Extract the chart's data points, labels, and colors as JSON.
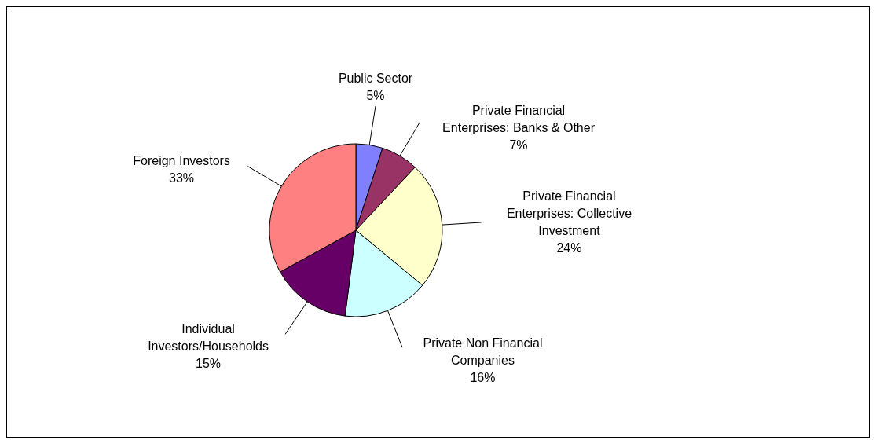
{
  "chart_data": {
    "type": "pie",
    "categories": [
      "Public Sector",
      "Private Financial Enterprises: Banks & Other",
      "Private Financial Enterprises: Collective Investment",
      "Private Non Financial Companies",
      "Individual Investors/Households",
      "Foreign Investors"
    ],
    "values": [
      5,
      7,
      24,
      16,
      15,
      33
    ],
    "colors": [
      "#8080ff",
      "#993366",
      "#ffffcc",
      "#ccffff",
      "#660066",
      "#ff8080"
    ],
    "value_labels": [
      "5%",
      "7%",
      "24%",
      "16%",
      "15%",
      "33%"
    ],
    "legend": false
  }
}
